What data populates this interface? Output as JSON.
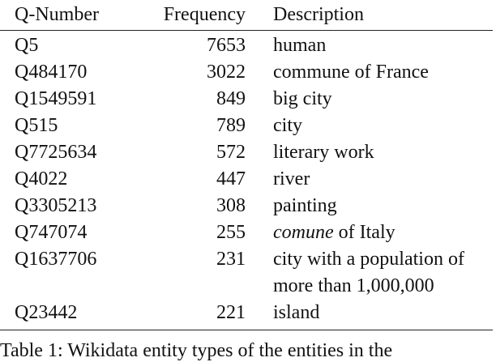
{
  "table": {
    "headers": {
      "qnumber": "Q-Number",
      "frequency": "Frequency",
      "description": "Description"
    },
    "rows": [
      {
        "q": "Q5",
        "freq": "7653",
        "desc": "human"
      },
      {
        "q": "Q484170",
        "freq": "3022",
        "desc": "commune of France"
      },
      {
        "q": "Q1549591",
        "freq": "849",
        "desc": "big city"
      },
      {
        "q": "Q515",
        "freq": "789",
        "desc": "city"
      },
      {
        "q": "Q7725634",
        "freq": "572",
        "desc": "literary work"
      },
      {
        "q": "Q4022",
        "freq": "447",
        "desc": "river"
      },
      {
        "q": "Q3305213",
        "freq": "308",
        "desc": "painting"
      },
      {
        "q": "Q747074",
        "freq": "255",
        "desc_italic": "comune",
        "desc_rest": " of Italy"
      },
      {
        "q": "Q1637706",
        "freq": "231",
        "desc_line1": "city with a population of",
        "desc_line2": "more than 1,000,000"
      },
      {
        "q": "Q23442",
        "freq": "221",
        "desc": "island"
      }
    ]
  },
  "caption": "Table 1: Wikidata entity types of the entities in the"
}
